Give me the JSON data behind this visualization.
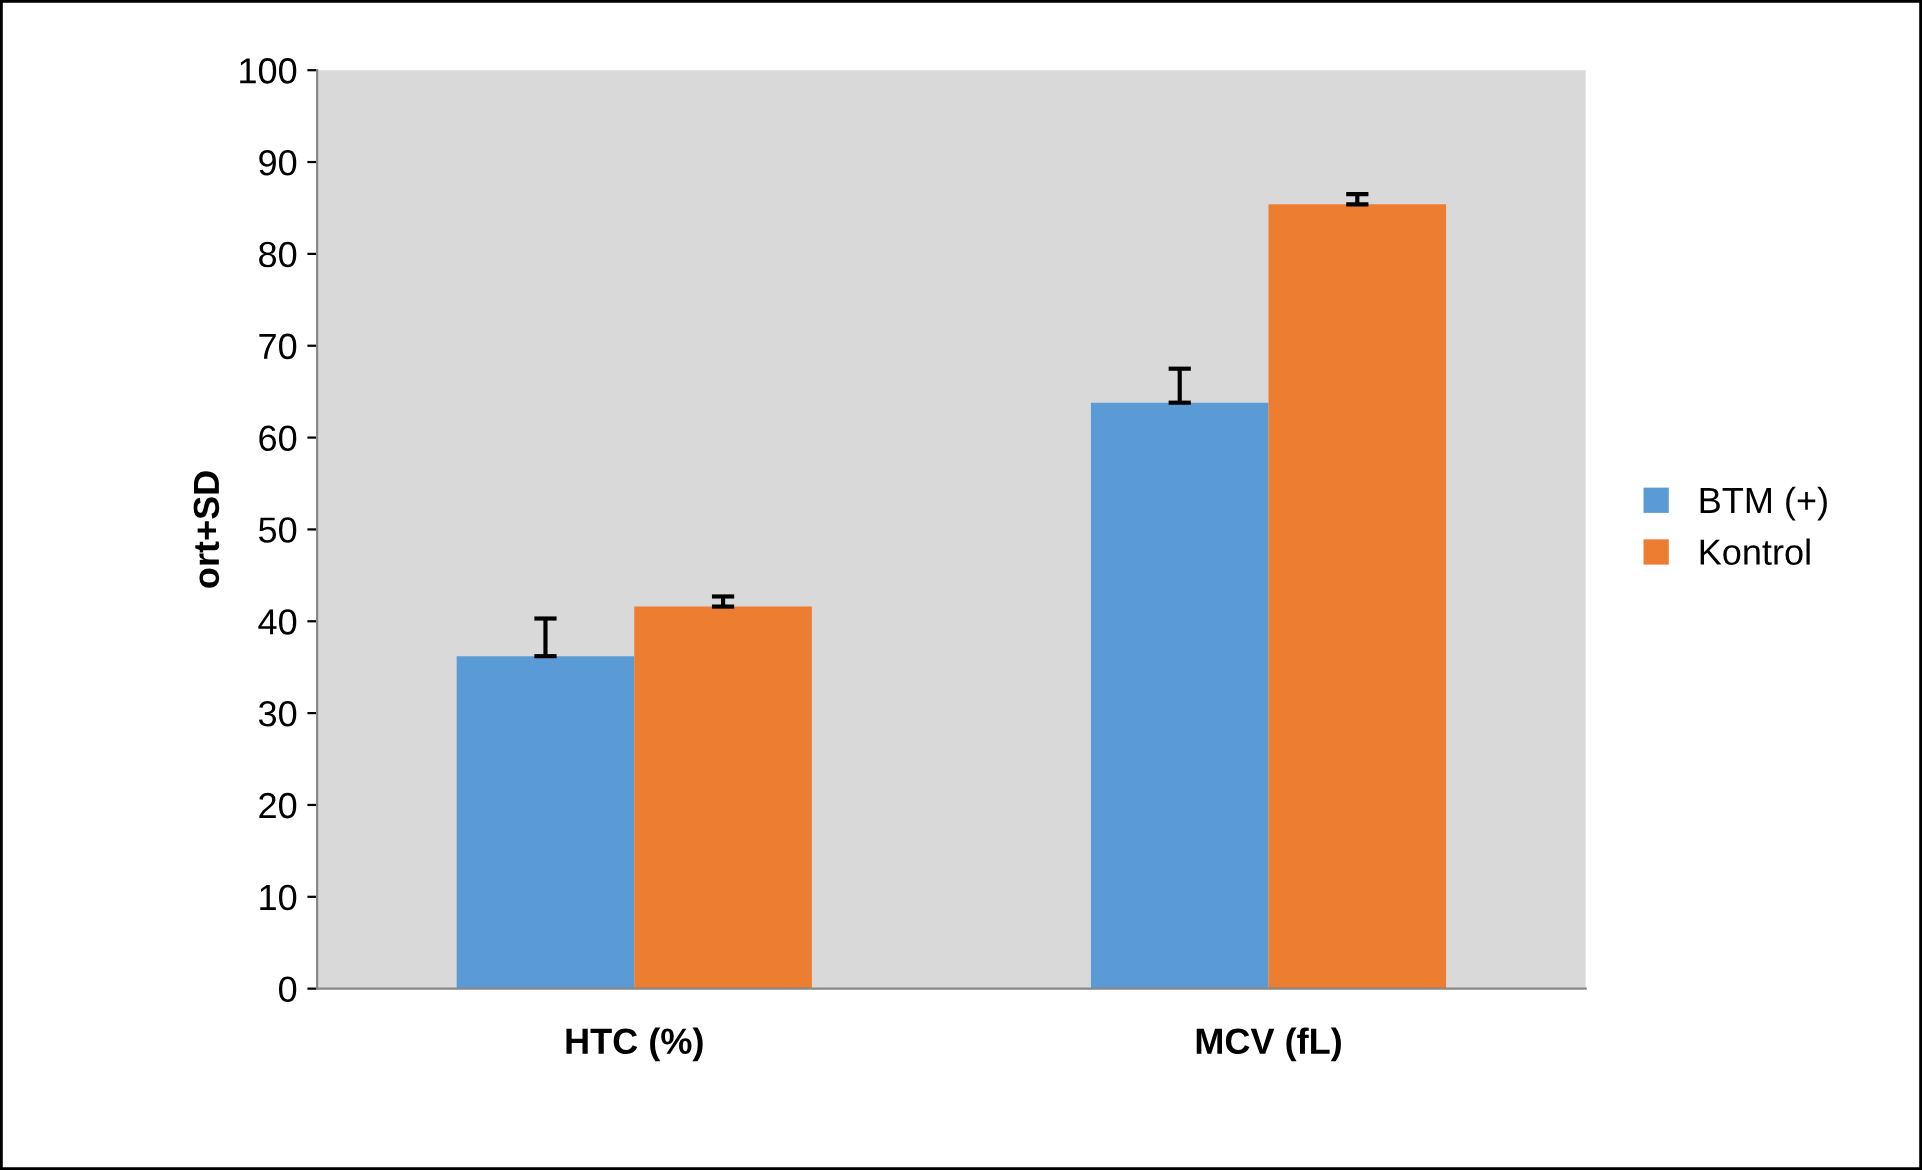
{
  "chart_data": {
    "type": "bar",
    "ylabel": "ort+SD",
    "categories": [
      "HTC (%)",
      "MCV (fL)"
    ],
    "series": [
      {
        "name": "BTM (+)",
        "color": "#5b9bd5",
        "values": [
          36.2,
          63.8
        ],
        "errors": [
          [
            36.2,
            40.3
          ],
          [
            63.8,
            67.5
          ]
        ]
      },
      {
        "name": "Kontrol",
        "color": "#ed7d31",
        "values": [
          41.6,
          85.4
        ],
        "errors": [
          [
            41.6,
            42.7
          ],
          [
            85.4,
            86.5
          ]
        ]
      }
    ],
    "ylim": [
      0,
      100
    ],
    "yticks": [
      0,
      10,
      20,
      30,
      40,
      50,
      60,
      70,
      80,
      90,
      100
    ],
    "grid": false,
    "legend": "right"
  }
}
